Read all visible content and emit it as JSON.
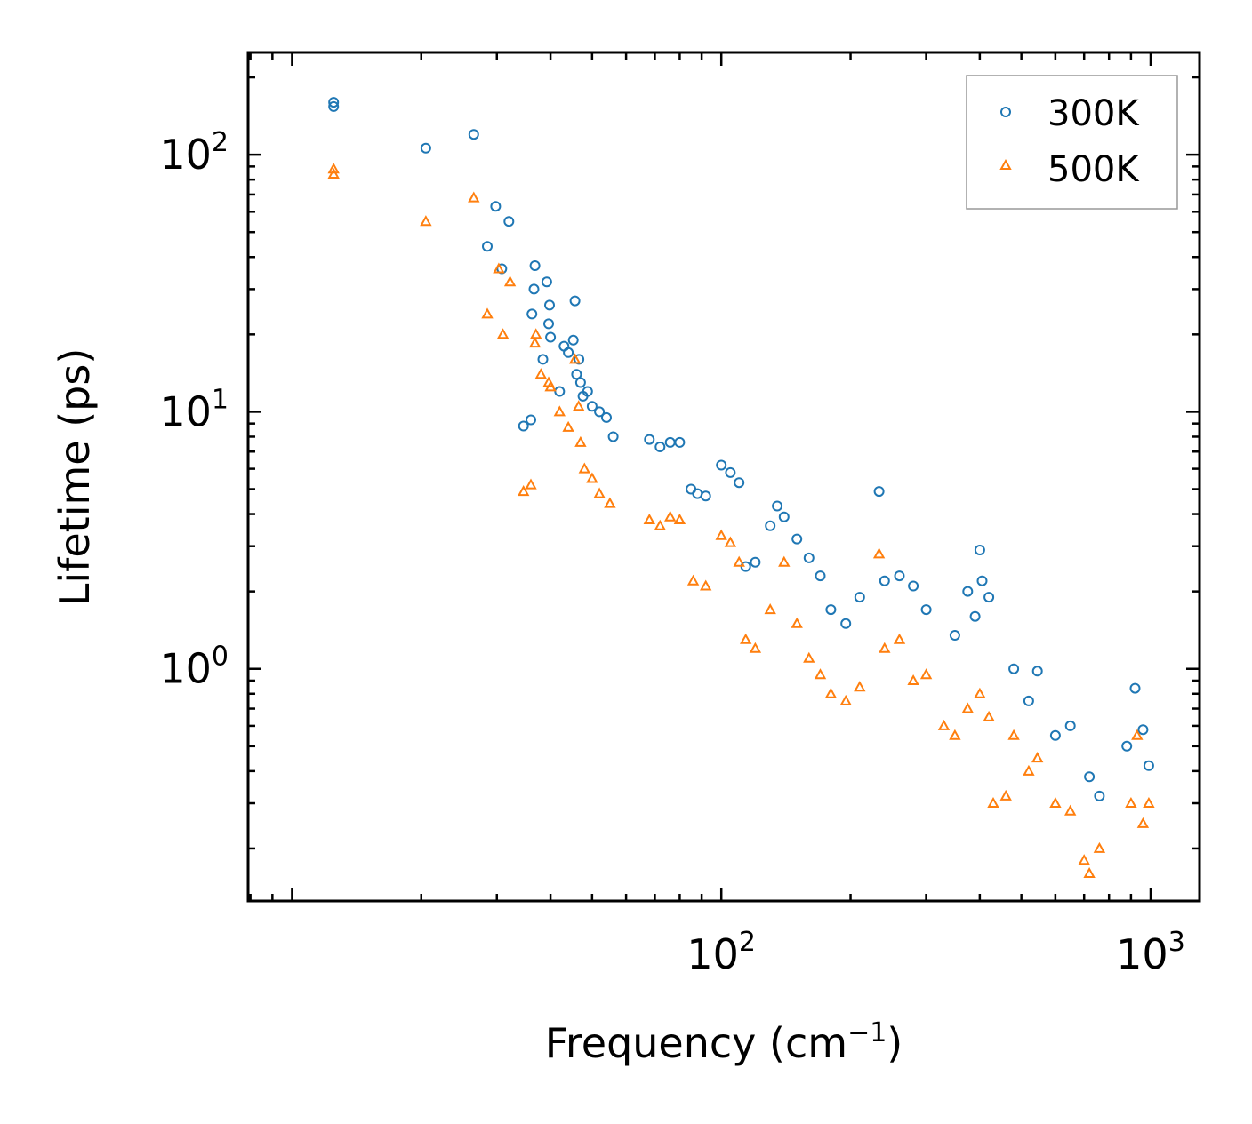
{
  "chart_data": {
    "type": "scatter",
    "title": "",
    "xlabel": "Frequency (cm",
    "xlabel_sup": "−1",
    "xlabel_end": ")",
    "ylabel": "Lifetime (ps)",
    "xscale": "log",
    "yscale": "log",
    "xlim": [
      7.9,
      1300
    ],
    "ylim": [
      0.125,
      250
    ],
    "xticks": [
      {
        "value": 100,
        "base": "10",
        "exp": "2"
      },
      {
        "value": 1000,
        "base": "10",
        "exp": "3"
      }
    ],
    "yticks": [
      {
        "value": 1,
        "base": "10",
        "exp": "0"
      },
      {
        "value": 10,
        "base": "10",
        "exp": "1"
      },
      {
        "value": 100,
        "base": "10",
        "exp": "2"
      }
    ],
    "legend_position": "top-right",
    "series": [
      {
        "name": "300K",
        "color": "#1f77b4",
        "marker": "circle",
        "points": [
          [
            12.5,
            160
          ],
          [
            12.5,
            154
          ],
          [
            20.5,
            106
          ],
          [
            26.5,
            120
          ],
          [
            28.5,
            44
          ],
          [
            29.8,
            63
          ],
          [
            30.8,
            36
          ],
          [
            32,
            55
          ],
          [
            34.6,
            8.8
          ],
          [
            36,
            9.3
          ],
          [
            36.2,
            24
          ],
          [
            36.6,
            30
          ],
          [
            36.8,
            37
          ],
          [
            38.4,
            16
          ],
          [
            39.2,
            32
          ],
          [
            39.6,
            22
          ],
          [
            39.8,
            26
          ],
          [
            40,
            19.5
          ],
          [
            42,
            12
          ],
          [
            43,
            18
          ],
          [
            44,
            17
          ],
          [
            45.2,
            19
          ],
          [
            45.6,
            27
          ],
          [
            46,
            14
          ],
          [
            46.6,
            16
          ],
          [
            47,
            13
          ],
          [
            47.6,
            11.5
          ],
          [
            48.8,
            12
          ],
          [
            50,
            10.5
          ],
          [
            52,
            10
          ],
          [
            54,
            9.5
          ],
          [
            56,
            8
          ],
          [
            68,
            7.8
          ],
          [
            72,
            7.3
          ],
          [
            76,
            7.6
          ],
          [
            80,
            7.6
          ],
          [
            85,
            5
          ],
          [
            88,
            4.8
          ],
          [
            92,
            4.7
          ],
          [
            100,
            6.2
          ],
          [
            105,
            5.8
          ],
          [
            110,
            5.3
          ],
          [
            114,
            2.5
          ],
          [
            120,
            2.6
          ],
          [
            130,
            3.6
          ],
          [
            135,
            4.3
          ],
          [
            140,
            3.9
          ],
          [
            150,
            3.2
          ],
          [
            160,
            2.7
          ],
          [
            170,
            2.3
          ],
          [
            180,
            1.7
          ],
          [
            195,
            1.5
          ],
          [
            210,
            1.9
          ],
          [
            233,
            4.9
          ],
          [
            240,
            2.2
          ],
          [
            260,
            2.3
          ],
          [
            280,
            2.1
          ],
          [
            300,
            1.7
          ],
          [
            350,
            1.35
          ],
          [
            375,
            2.0
          ],
          [
            390,
            1.6
          ],
          [
            400,
            2.9
          ],
          [
            405,
            2.2
          ],
          [
            420,
            1.9
          ],
          [
            480,
            1.0
          ],
          [
            520,
            0.75
          ],
          [
            545,
            0.98
          ],
          [
            600,
            0.55
          ],
          [
            650,
            0.6
          ],
          [
            720,
            0.38
          ],
          [
            760,
            0.32
          ],
          [
            880,
            0.5
          ],
          [
            920,
            0.84
          ],
          [
            960,
            0.58
          ],
          [
            990,
            0.42
          ]
        ]
      },
      {
        "name": "500K",
        "color": "#ff7f0e",
        "marker": "triangle",
        "points": [
          [
            12.5,
            88
          ],
          [
            12.5,
            84
          ],
          [
            20.5,
            55
          ],
          [
            26.5,
            68
          ],
          [
            28.5,
            24
          ],
          [
            30.3,
            36
          ],
          [
            31,
            20
          ],
          [
            32.2,
            32
          ],
          [
            34.6,
            4.9
          ],
          [
            36,
            5.2
          ],
          [
            36.8,
            18.5
          ],
          [
            37,
            20
          ],
          [
            38,
            14
          ],
          [
            39.6,
            13
          ],
          [
            40,
            12.5
          ],
          [
            42,
            10
          ],
          [
            44,
            8.7
          ],
          [
            45.6,
            16
          ],
          [
            46.5,
            10.5
          ],
          [
            47,
            7.6
          ],
          [
            48,
            6
          ],
          [
            50,
            5.5
          ],
          [
            52,
            4.8
          ],
          [
            55,
            4.4
          ],
          [
            68,
            3.8
          ],
          [
            72,
            3.6
          ],
          [
            76,
            3.9
          ],
          [
            80,
            3.8
          ],
          [
            86,
            2.2
          ],
          [
            92,
            2.1
          ],
          [
            100,
            3.3
          ],
          [
            105,
            3.1
          ],
          [
            110,
            2.6
          ],
          [
            114,
            1.3
          ],
          [
            120,
            1.2
          ],
          [
            130,
            1.7
          ],
          [
            140,
            2.6
          ],
          [
            150,
            1.5
          ],
          [
            160,
            1.1
          ],
          [
            170,
            0.95
          ],
          [
            180,
            0.8
          ],
          [
            195,
            0.75
          ],
          [
            210,
            0.85
          ],
          [
            233,
            2.8
          ],
          [
            240,
            1.2
          ],
          [
            260,
            1.3
          ],
          [
            280,
            0.9
          ],
          [
            300,
            0.95
          ],
          [
            330,
            0.6
          ],
          [
            350,
            0.55
          ],
          [
            375,
            0.7
          ],
          [
            400,
            0.8
          ],
          [
            420,
            0.65
          ],
          [
            430,
            0.3
          ],
          [
            460,
            0.32
          ],
          [
            480,
            0.55
          ],
          [
            520,
            0.4
          ],
          [
            545,
            0.45
          ],
          [
            600,
            0.3
          ],
          [
            650,
            0.28
          ],
          [
            700,
            0.18
          ],
          [
            720,
            0.16
          ],
          [
            760,
            0.2
          ],
          [
            900,
            0.3
          ],
          [
            930,
            0.55
          ],
          [
            960,
            0.25
          ],
          [
            990,
            0.3
          ]
        ]
      }
    ]
  }
}
